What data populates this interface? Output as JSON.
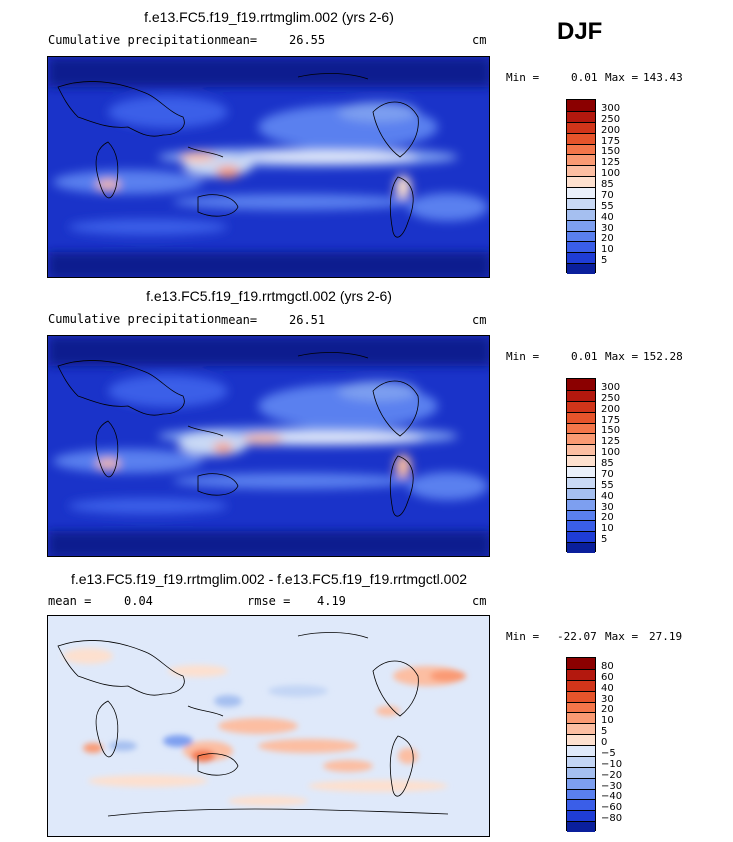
{
  "season": "DJF",
  "panels": [
    {
      "title": "f.e13.FC5.f19_f19.rrtmglim.002 (yrs 2-6)",
      "subtitle_left": "Cumulative precipitation",
      "mean_label": "mean=",
      "mean_value": "26.55",
      "units": "cm",
      "min_label": "Min =",
      "min_value": "0.01",
      "max_label": "Max =",
      "max_value": "143.43"
    },
    {
      "title": "f.e13.FC5.f19_f19.rrtmgctl.002 (yrs 2-6)",
      "subtitle_left": "Cumulative precipitation",
      "mean_label": "mean=",
      "mean_value": "26.51",
      "units": "cm",
      "min_label": "Min =",
      "min_value": "0.01",
      "max_label": "Max =",
      "max_value": "152.28"
    },
    {
      "title": "f.e13.FC5.f19_f19.rrtmglim.002 - f.e13.FC5.f19_f19.rrtmgctl.002",
      "mean_label": "mean =",
      "mean_value": "0.04",
      "rmse_label": "rmse =",
      "rmse_value": "4.19",
      "units": "cm",
      "min_label": "Min =",
      "min_value": "-22.07",
      "max_label": "Max =",
      "max_value": "27.19"
    }
  ],
  "colorbar_precip": {
    "labels": [
      "300",
      "250",
      "200",
      "175",
      "150",
      "125",
      "100",
      "85",
      "70",
      "55",
      "40",
      "30",
      "20",
      "10",
      "5"
    ],
    "colors": [
      "#8b0000",
      "#b3180e",
      "#d1351a",
      "#e6542b",
      "#f4764a",
      "#fa9a73",
      "#fcbea2",
      "#fde0cf",
      "#eaf0fb",
      "#c9d9f5",
      "#a5bff0",
      "#7d9ff0",
      "#5a80ef",
      "#3a5ee8",
      "#1f3dd6",
      "#0a1f9c"
    ]
  },
  "colorbar_diff": {
    "labels": [
      "80",
      "60",
      "40",
      "30",
      "20",
      "10",
      "5",
      "0",
      "−5",
      "−10",
      "−20",
      "−30",
      "−40",
      "−60",
      "−80"
    ],
    "colors": [
      "#8b0000",
      "#b3180e",
      "#d1351a",
      "#e6542b",
      "#f4764a",
      "#fa9a73",
      "#fcbea2",
      "#fde0cf",
      "#dfe9fa",
      "#c3d5f5",
      "#a5bff0",
      "#7d9ff0",
      "#5a80ef",
      "#3a5ee8",
      "#1f3dd6",
      "#0a1f9c"
    ]
  }
}
